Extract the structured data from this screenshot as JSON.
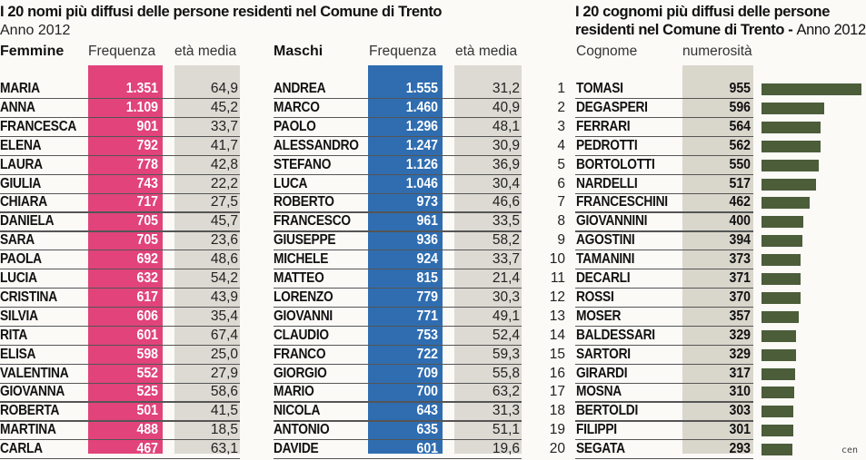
{
  "colors": {
    "female_col": "#e1437a",
    "male_col": "#2f6db0",
    "age_col": "#dcdad3",
    "count_col": "#d9d6cc",
    "bar": "#4c5d3a"
  },
  "names_panel": {
    "title": "I 20 nomi più diffusi delle persone residenti nel Comune di Trento",
    "subtitle": "Anno 2012",
    "female_header": "Femmine",
    "male_header": "Maschi",
    "freq_header": "Frequenza",
    "age_header": "età media"
  },
  "surnames_panel": {
    "title_line1": "I 20 cognomi più diffusi delle persone",
    "title_line2_bold": "residenti nel Comune di Trento - ",
    "title_line2_normal": "Anno 2012",
    "surname_header": "Cognome",
    "count_header": "numerosità"
  },
  "credit": "cen",
  "chart_data": [
    {
      "type": "table",
      "title": "Femmine",
      "columns": [
        "Femmine",
        "Frequenza",
        "età media"
      ],
      "rows": [
        [
          "MARIA",
          "1.351",
          "64,9"
        ],
        [
          "ANNA",
          "1.109",
          "45,2"
        ],
        [
          "FRANCESCA",
          "901",
          "33,7"
        ],
        [
          "ELENA",
          "792",
          "41,7"
        ],
        [
          "LAURA",
          "778",
          "42,8"
        ],
        [
          "GIULIA",
          "743",
          "22,2"
        ],
        [
          "CHIARA",
          "717",
          "27,5"
        ],
        [
          "DANIELA",
          "705",
          "45,7"
        ],
        [
          "SARA",
          "705",
          "23,6"
        ],
        [
          "PAOLA",
          "692",
          "48,6"
        ],
        [
          "LUCIA",
          "632",
          "54,2"
        ],
        [
          "CRISTINA",
          "617",
          "43,9"
        ],
        [
          "SILVIA",
          "606",
          "35,4"
        ],
        [
          "RITA",
          "601",
          "67,4"
        ],
        [
          "ELISA",
          "598",
          "25,0"
        ],
        [
          "VALENTINA",
          "552",
          "27,9"
        ],
        [
          "GIOVANNA",
          "525",
          "58,6"
        ],
        [
          "ROBERTA",
          "501",
          "41,5"
        ],
        [
          "MARTINA",
          "488",
          "18,5"
        ],
        [
          "CARLA",
          "467",
          "63,1"
        ]
      ]
    },
    {
      "type": "table",
      "title": "Maschi",
      "columns": [
        "Maschi",
        "Frequenza",
        "età media"
      ],
      "rows": [
        [
          "ANDREA",
          "1.555",
          "31,2"
        ],
        [
          "MARCO",
          "1.460",
          "40,9"
        ],
        [
          "PAOLO",
          "1.296",
          "48,1"
        ],
        [
          "ALESSANDRO",
          "1.247",
          "30,9"
        ],
        [
          "STEFANO",
          "1.126",
          "36,9"
        ],
        [
          "LUCA",
          "1.046",
          "30,4"
        ],
        [
          "ROBERTO",
          "973",
          "46,6"
        ],
        [
          "FRANCESCO",
          "961",
          "33,5"
        ],
        [
          "GIUSEPPE",
          "936",
          "58,2"
        ],
        [
          "MICHELE",
          "924",
          "33,7"
        ],
        [
          "MATTEO",
          "815",
          "21,4"
        ],
        [
          "LORENZO",
          "779",
          "30,3"
        ],
        [
          "GIOVANNI",
          "771",
          "49,1"
        ],
        [
          "CLAUDIO",
          "753",
          "52,4"
        ],
        [
          "FRANCO",
          "722",
          "59,3"
        ],
        [
          "GIORGIO",
          "709",
          "55,8"
        ],
        [
          "MARIO",
          "700",
          "63,2"
        ],
        [
          "NICOLA",
          "643",
          "31,3"
        ],
        [
          "ANTONIO",
          "635",
          "51,1"
        ],
        [
          "DAVIDE",
          "601",
          "19,6"
        ]
      ]
    },
    {
      "type": "bar",
      "title": "I 20 cognomi più diffusi delle persone residenti nel Comune di Trento - Anno 2012",
      "ranks": [
        "1",
        "2",
        "3",
        "4",
        "5",
        "6",
        "7",
        "8",
        "9",
        "10",
        "11",
        "12",
        "13",
        "14",
        "15",
        "16",
        "17",
        "18",
        "19",
        "20"
      ],
      "categories": [
        "TOMASI",
        "DEGASPERI",
        "FERRARI",
        "PEDROTTI",
        "BORTOLOTTI",
        "NARDELLI",
        "FRANCESCHINI",
        "GIOVANNINI",
        "AGOSTINI",
        "TAMANINI",
        "DECARLI",
        "ROSSI",
        "MOSER",
        "BALDESSARI",
        "SARTORI",
        "GIRARDI",
        "MOSNA",
        "BERTOLDI",
        "FILIPPI",
        "SEGATA"
      ],
      "values": [
        955,
        596,
        564,
        562,
        550,
        517,
        462,
        400,
        394,
        373,
        371,
        370,
        357,
        329,
        329,
        317,
        310,
        303,
        301,
        293
      ],
      "xlabel": "Cognome",
      "ylabel": "numerosità"
    }
  ]
}
